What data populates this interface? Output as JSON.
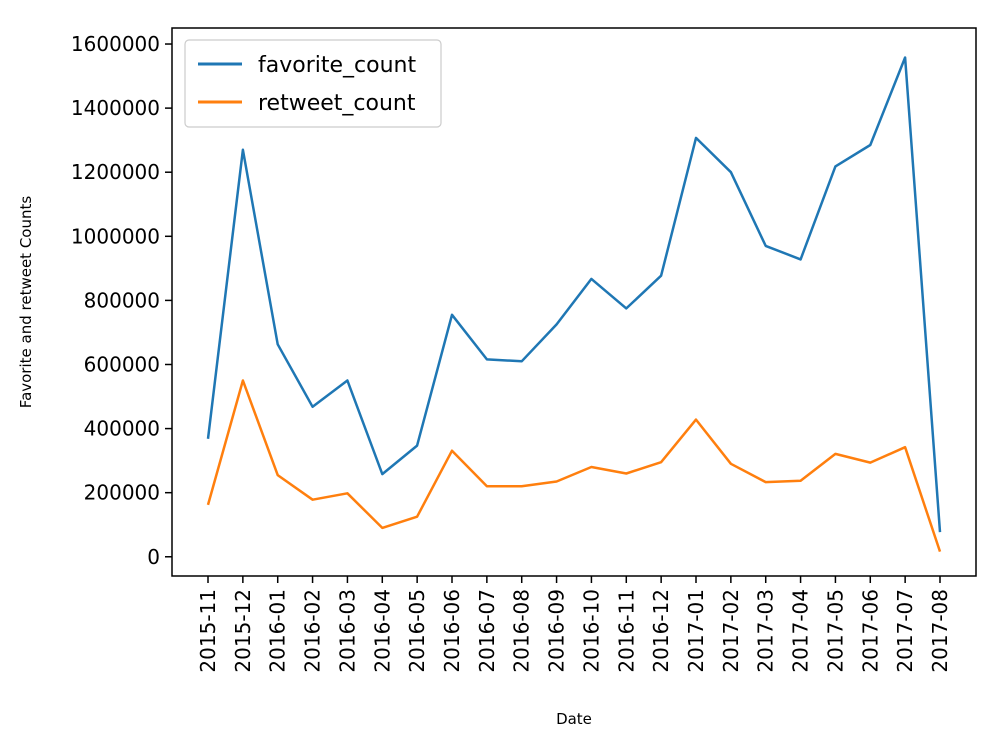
{
  "chart_data": {
    "type": "line",
    "title": "",
    "xlabel": "Date",
    "ylabel": "Favorite and retweet Counts",
    "categories": [
      "2015-11",
      "2015-12",
      "2016-01",
      "2016-02",
      "2016-03",
      "2016-04",
      "2016-05",
      "2016-06",
      "2016-07",
      "2016-08",
      "2016-09",
      "2016-10",
      "2016-11",
      "2016-12",
      "2017-01",
      "2017-02",
      "2017-03",
      "2017-04",
      "2017-05",
      "2017-06",
      "2017-07",
      "2017-08"
    ],
    "ylim": [
      -60000,
      1650000
    ],
    "yticks": [
      0,
      200000,
      400000,
      600000,
      800000,
      1000000,
      1200000,
      1400000,
      1600000
    ],
    "ytick_labels": [
      "0",
      "200000",
      "400000",
      "600000",
      "800000",
      "1000000",
      "1200000",
      "1400000",
      "1600000"
    ],
    "grid": false,
    "legend_position": "top-left",
    "series": [
      {
        "name": "favorite_count",
        "color": "#1f77b4",
        "values": [
          368000,
          1270000,
          663000,
          468000,
          550000,
          258000,
          347000,
          755000,
          616000,
          610000,
          725000,
          867000,
          775000,
          877000,
          1307000,
          1200000,
          970000,
          928000,
          1218000,
          1285000,
          1558000,
          77000
        ]
      },
      {
        "name": "retweet_count",
        "color": "#ff7f0e",
        "values": [
          162000,
          550000,
          255000,
          178000,
          198000,
          90000,
          125000,
          331000,
          220000,
          220000,
          235000,
          280000,
          260000,
          295000,
          428000,
          290000,
          233000,
          237000,
          321000,
          294000,
          342000,
          16000
        ]
      }
    ]
  }
}
